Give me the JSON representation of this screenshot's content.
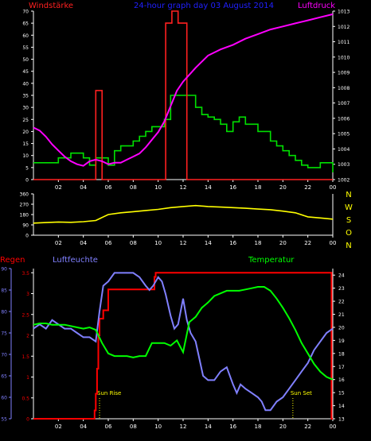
{
  "colors": {
    "background": "#000000",
    "axis": "#ffffff",
    "wind": "#00e000",
    "gust": "#ff2020",
    "pressure": "#ff00ff",
    "wind_direction": "#ffff00",
    "rain": "#ff0000",
    "humidity": "#8080ff",
    "temperature": "#00ff00",
    "sun_marker": "#ffff00",
    "compass_labels": "#ffff00",
    "title": "#2020ff"
  },
  "chart_data": [
    {
      "type": "line",
      "id": "wind-pressure",
      "title": "24-hour graph day  03 August 2014",
      "left_label": "Windstärke",
      "right_label": "Luftdruck",
      "x_ticks": [
        "02",
        "04",
        "06",
        "08",
        "10",
        "12",
        "14",
        "16",
        "18",
        "20",
        "22",
        "00"
      ],
      "x_range": [
        0,
        24
      ],
      "y_left_range": [
        0,
        70
      ],
      "y_left_ticks": [
        0,
        5,
        10,
        15,
        20,
        25,
        30,
        35,
        40,
        45,
        50,
        55,
        60,
        65,
        70
      ],
      "y_right_range": [
        1002,
        1013
      ],
      "y_right_ticks": [
        1002,
        1003,
        1004,
        1005,
        1006,
        1007,
        1008,
        1009,
        1010,
        1011,
        1012,
        1013
      ],
      "series": [
        {
          "key": "wind",
          "style": "step",
          "axis": "left",
          "x": [
            0,
            1,
            2,
            3,
            4,
            4.5,
            5,
            5.5,
            6,
            6.5,
            7,
            7.5,
            8,
            8.5,
            9,
            9.5,
            10,
            10.5,
            11,
            12,
            13,
            13.5,
            14,
            14.5,
            15,
            15.5,
            16,
            16.5,
            17,
            18,
            19,
            19.5,
            20,
            20.5,
            21,
            21.5,
            22,
            22.5,
            23,
            24
          ],
          "y": [
            7,
            7,
            9,
            11,
            9,
            6,
            9,
            9,
            6,
            12,
            14,
            14,
            16,
            18,
            20,
            22,
            22,
            25,
            35,
            35,
            30,
            27,
            26,
            25,
            23,
            20,
            24,
            26,
            23,
            20,
            16,
            14,
            12,
            10,
            8,
            6,
            5,
            5,
            7,
            3
          ]
        },
        {
          "key": "gust",
          "style": "step",
          "axis": "left",
          "x": [
            0,
            4.9,
            5,
            5.4,
            5.5,
            10.5,
            10.6,
            11,
            11.1,
            11.5,
            11.6,
            12.2,
            12.3,
            24
          ],
          "y": [
            0,
            0,
            37,
            37,
            0,
            0,
            65,
            65,
            70,
            70,
            65,
            65,
            0,
            0
          ]
        },
        {
          "key": "pressure",
          "style": "line",
          "axis": "right",
          "x": [
            0,
            0.5,
            1,
            1.5,
            2,
            2.5,
            3,
            3.5,
            4,
            4.5,
            5,
            5.5,
            6,
            6.5,
            7,
            7.5,
            8,
            8.5,
            9,
            9.5,
            10,
            10.5,
            11,
            11.5,
            12,
            13,
            14,
            15,
            16,
            17,
            18,
            19,
            20,
            21,
            22,
            23,
            24
          ],
          "y": [
            1005.4,
            1005.2,
            1004.8,
            1004.3,
            1003.9,
            1003.5,
            1003.2,
            1003.0,
            1002.9,
            1003.2,
            1003.3,
            1003.2,
            1003.0,
            1003.1,
            1003.1,
            1003.3,
            1003.5,
            1003.7,
            1004.1,
            1004.6,
            1005.1,
            1005.8,
            1006.8,
            1007.8,
            1008.4,
            1009.3,
            1010.1,
            1010.5,
            1010.8,
            1011.2,
            1011.5,
            1011.8,
            1012.0,
            1012.2,
            1012.4,
            1012.6,
            1012.8
          ]
        }
      ]
    },
    {
      "type": "line",
      "id": "wind-direction",
      "x_ticks": [
        "02",
        "04",
        "06",
        "08",
        "10",
        "12",
        "14",
        "16",
        "18",
        "20",
        "22",
        "00"
      ],
      "x_range": [
        0,
        24
      ],
      "y_range": [
        0,
        360
      ],
      "y_ticks": [
        0,
        90,
        180,
        270,
        360
      ],
      "compass_labels": [
        "N",
        "W",
        "S",
        "O",
        "N"
      ],
      "series": [
        {
          "key": "wind_direction",
          "style": "line",
          "axis": "left",
          "x": [
            0,
            1,
            2,
            3,
            4,
            5,
            6,
            7,
            8,
            9,
            10,
            11,
            12,
            13,
            14,
            15,
            16,
            17,
            18,
            19,
            20,
            21,
            22,
            23,
            24
          ],
          "y": [
            105,
            110,
            115,
            112,
            118,
            128,
            180,
            195,
            205,
            215,
            225,
            240,
            250,
            258,
            250,
            245,
            240,
            235,
            228,
            222,
            210,
            195,
            160,
            150,
            140
          ]
        }
      ]
    },
    {
      "type": "line",
      "id": "rain-humidity-temperature",
      "rain_label": "Regen",
      "humidity_label": "Luftfeuchte",
      "temperature_label": "Temperatur",
      "x_ticks": [
        "02",
        "04",
        "06",
        "08",
        "10",
        "12",
        "14",
        "16",
        "18",
        "20",
        "22",
        "00"
      ],
      "x_range": [
        0,
        24
      ],
      "rain_ticks": [
        0,
        0.5,
        1,
        1.5,
        2,
        2.5,
        3,
        3.5
      ],
      "rain_range": [
        0,
        3.6
      ],
      "humidity_ticks": [
        55,
        60,
        65,
        70,
        75,
        80,
        85,
        90
      ],
      "humidity_range": [
        55,
        90
      ],
      "temperature_ticks": [
        13,
        14,
        15,
        16,
        17,
        18,
        19,
        20,
        21,
        22,
        23,
        24
      ],
      "temperature_range": [
        13,
        24.5
      ],
      "annotations": [
        {
          "key": "sun_rise",
          "text": "Sun Rise",
          "x": 5.3
        },
        {
          "key": "sun_set",
          "text": "Sun Set",
          "x": 20.8
        }
      ],
      "series": [
        {
          "key": "rain",
          "style": "step",
          "axis": "rain",
          "x": [
            0,
            4.8,
            4.9,
            5.0,
            5.1,
            5.2,
            5.3,
            5.6,
            6.0,
            9.5,
            9.7,
            9.8,
            23.8,
            23.9,
            24
          ],
          "y": [
            0,
            0,
            0.2,
            0.6,
            1.2,
            2.0,
            2.4,
            2.6,
            3.1,
            3.1,
            3.4,
            3.5,
            3.5,
            0,
            0
          ]
        },
        {
          "key": "humidity",
          "style": "line",
          "axis": "humidity",
          "x": [
            0,
            0.5,
            1,
            1.5,
            2,
            2.5,
            3,
            3.5,
            4,
            4.5,
            5,
            5.3,
            5.6,
            6,
            6.5,
            7,
            7.5,
            8,
            8.5,
            9,
            9.3,
            9.6,
            10,
            10.3,
            10.6,
            11,
            11.3,
            11.6,
            12,
            12.3,
            12.6,
            13,
            13.3,
            13.6,
            14,
            14.5,
            15,
            15.5,
            16,
            16.3,
            16.6,
            17,
            17.5,
            18,
            18.3,
            18.6,
            19,
            19.5,
            20,
            20.5,
            21,
            21.5,
            22,
            22.5,
            23,
            23.5,
            24
          ],
          "y": [
            76,
            77,
            76,
            78,
            77,
            76,
            76,
            75,
            74,
            74,
            73,
            80,
            86,
            87,
            89,
            89,
            89,
            89,
            88,
            86,
            85,
            86,
            88,
            87,
            84,
            79,
            76,
            77,
            83,
            78,
            75,
            73,
            69,
            65,
            64,
            64,
            66,
            67,
            63,
            61,
            63,
            62,
            61,
            60,
            59,
            57,
            57,
            59,
            60,
            62,
            64,
            66,
            68,
            71,
            73,
            75,
            76
          ]
        },
        {
          "key": "temperature",
          "style": "line",
          "axis": "temperature",
          "x": [
            0,
            0.5,
            1,
            1.5,
            2,
            2.5,
            3,
            3.5,
            4,
            4.5,
            5,
            5.5,
            6,
            6.5,
            7,
            7.5,
            8,
            8.5,
            9,
            9.5,
            10,
            10.5,
            11,
            11.5,
            12,
            12.5,
            13,
            13.5,
            14,
            14.5,
            15,
            15.5,
            16,
            16.5,
            17,
            17.5,
            18,
            18.5,
            19,
            19.5,
            20,
            20.5,
            21,
            21.5,
            22,
            22.5,
            23,
            23.5,
            24
          ],
          "y": [
            20.2,
            20.3,
            20.3,
            20.2,
            20.2,
            20.2,
            20.1,
            20.0,
            19.9,
            20.0,
            19.8,
            18.8,
            18.0,
            17.8,
            17.8,
            17.8,
            17.7,
            17.8,
            17.8,
            18.8,
            18.8,
            18.8,
            18.6,
            19.0,
            18.1,
            20.4,
            20.8,
            21.5,
            21.9,
            22.4,
            22.6,
            22.8,
            22.8,
            22.8,
            22.9,
            23.0,
            23.1,
            23.1,
            22.8,
            22.2,
            21.5,
            20.7,
            19.8,
            18.8,
            18.0,
            17.2,
            16.6,
            16.2,
            16.0
          ]
        }
      ]
    }
  ]
}
